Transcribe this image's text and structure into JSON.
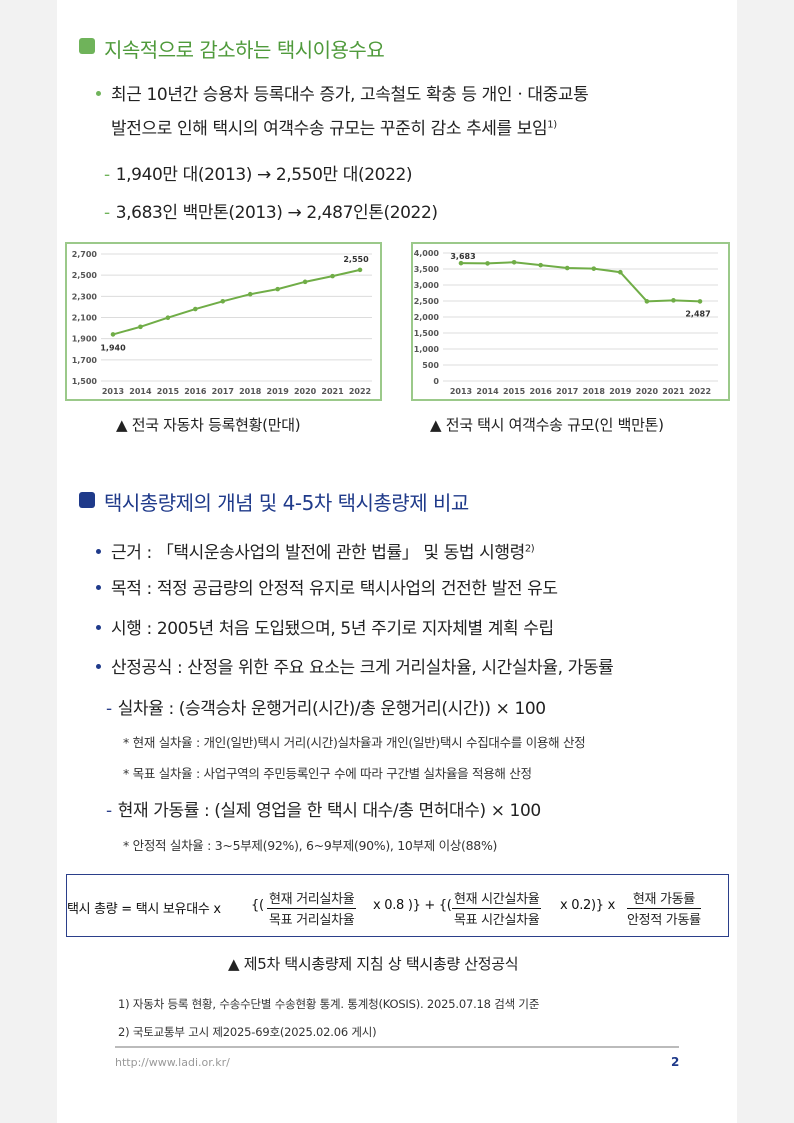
{
  "section1": {
    "title": "지속적으로 감소하는 택시이용수요",
    "bullet": "최근 10년간 승용차 등록대수 증가, 고속철도 확충 등 개인ㆍ대중교통",
    "bullet_cont": "발전으로 인해 택시의 여객수송 규모는 꾸준히 감소 추세를 보임",
    "bullet_sup": "1)",
    "sub1": "1,940만 대(2013) → 2,550만 대(2022)",
    "sub2": "3,683인 백만톤(2013) → 2,487인톤(2022)"
  },
  "chart_data": [
    {
      "type": "line",
      "title": "",
      "x": [
        "2013",
        "2014",
        "2015",
        "2016",
        "2017",
        "2018",
        "2019",
        "2020",
        "2021",
        "2022"
      ],
      "values": [
        1940,
        2012,
        2098,
        2180,
        2253,
        2320,
        2368,
        2437,
        2491,
        2550
      ],
      "ylim": [
        1500,
        2700
      ],
      "yticks": [
        "1,500",
        "1,700",
        "1,900",
        "2,100",
        "2,300",
        "2,500",
        "2,700"
      ],
      "data_labels": {
        "first": "1,940",
        "last": "2,550"
      },
      "grid": true,
      "color": "#70ad47"
    },
    {
      "type": "line",
      "title": "",
      "x": [
        "2013",
        "2014",
        "2015",
        "2016",
        "2017",
        "2018",
        "2019",
        "2020",
        "2021",
        "2022"
      ],
      "values": [
        3683,
        3675,
        3710,
        3620,
        3530,
        3510,
        3400,
        2490,
        2520,
        2487
      ],
      "ylim": [
        0,
        4000
      ],
      "yticks": [
        "0",
        "500",
        "1,000",
        "1,500",
        "2,000",
        "2,500",
        "3,000",
        "3,500",
        "4,000"
      ],
      "data_labels": {
        "first": "3,683",
        "last": "2,487"
      },
      "grid": true,
      "color": "#70ad47"
    }
  ],
  "captions": {
    "chart1": "▲ 전국 자동차 등록현황(만대)",
    "chart2": "▲ 전국 택시 여객수송 규모(인 백만톤)"
  },
  "section2": {
    "title": "택시총량제의 개념 및 4-5차 택시총량제 비교",
    "b1": "근거 : 「택시운송사업의  발전에 관한 법률」 및 동법 시행령",
    "b1_sup": "2)",
    "b2": "목적 : 적정 공급량의 안정적 유지로 택시사업의 건전한 발전 유도",
    "b3": "시행 : 2005년 처음 도입됐으며, 5년 주기로 지자체별 계획 수립",
    "b4": "산정공식 : 산정을 위한 주요 요소는 크게 거리실차율, 시간실차율, 가동률",
    "s1": "실차율 : (승객승차 운행거리(시간)/총 운행거리(시간))  × 100",
    "n1": "* 현재 실차율 : 개인(일반)택시 거리(시간)실차율과 개인(일반)택시 수집대수를 이용해 산정",
    "n2": "* 목표 실차율 : 사업구역의 주민등록인구 수에 따라 구간별 실차율을 적용해 산정",
    "s2": "현재 가동률 : (실제 영업을 한 택시 대수/총 면허대수) × 100",
    "n3": "* 안정적 실차율 : 3~5부제(92%), 6~9부제(90%), 10부제 이상(88%)"
  },
  "formula": {
    "lhs": "택시 총량 = 택시 보유대수 x",
    "open1": "{(",
    "f1_num": "현재 거리실차율",
    "f1_den": "목표 거리실차율",
    "mul1": "x 0.8 )} + {(",
    "f2_num": "현재 시간실차율",
    "f2_den": "목표 시간실차율",
    "mul2": "x 0.2)} x",
    "f3_num": "현재 가동률",
    "f3_den": "안정적 가동률",
    "caption": "▲ 제5차 택시총량제 지침 상 택시총량 산정공식"
  },
  "footnotes": {
    "f1": "1) 자동차 등록 현황, 수송수단별 수송현황 통계. 통계청(KOSIS). 2025.07.18 검색 기준",
    "f2": "2) 국토교통부 고시 제2025-69호(2025.02.06  게시)"
  },
  "footer": {
    "url": "http://www.ladi.or.kr/",
    "page": "2"
  },
  "colors": {
    "green": "#6fb35a",
    "navy": "#1f3a8a",
    "chart_border": "#9bc98a"
  }
}
